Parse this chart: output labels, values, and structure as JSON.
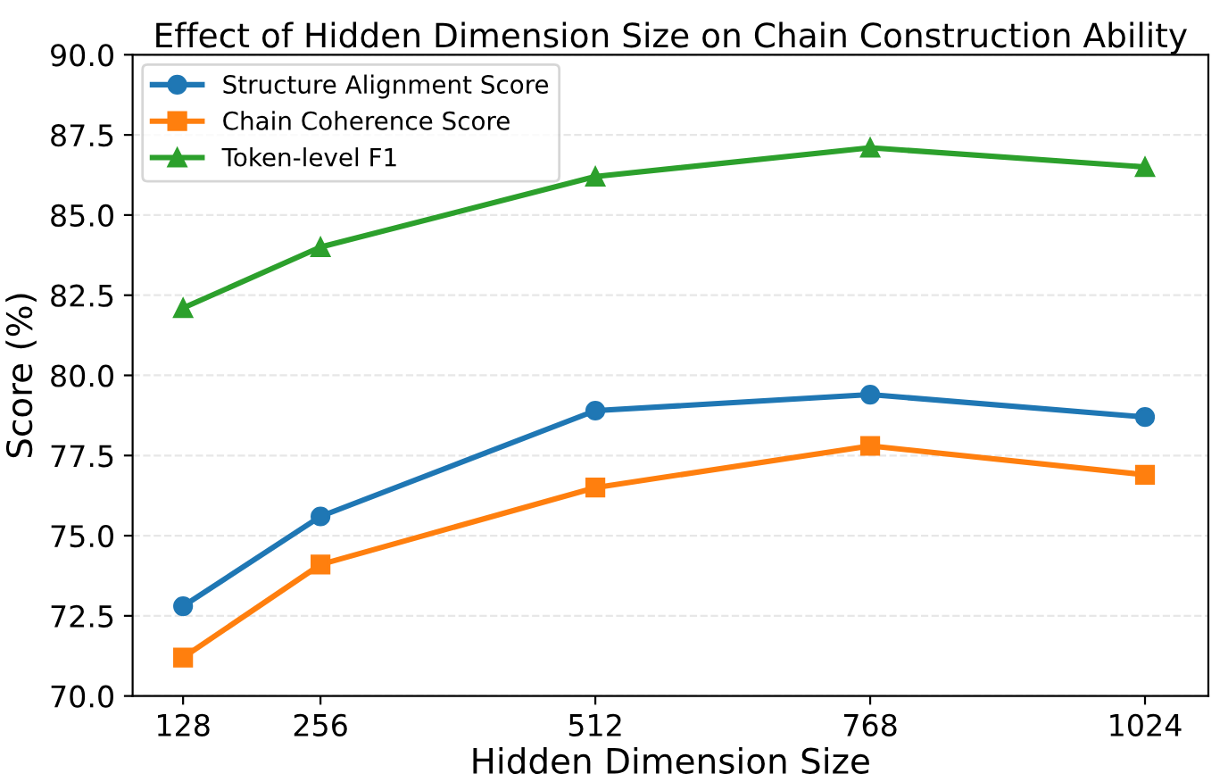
{
  "chart_data": {
    "type": "line",
    "title": "Effect of Hidden Dimension Size on Chain Construction Ability",
    "xlabel": "Hidden Dimension Size",
    "ylabel": "Score (%)",
    "x": [
      128,
      256,
      512,
      768,
      1024
    ],
    "series": [
      {
        "name": "Structure Alignment Score",
        "color": "#1f77b4",
        "marker": "circle",
        "values": [
          72.8,
          75.6,
          78.9,
          79.4,
          78.7
        ]
      },
      {
        "name": "Chain Coherence Score",
        "color": "#ff7f0e",
        "marker": "square",
        "values": [
          71.2,
          74.1,
          76.5,
          77.8,
          76.9
        ]
      },
      {
        "name": "Token-level F1",
        "color": "#2ca02c",
        "marker": "triangle",
        "values": [
          82.1,
          84.0,
          86.2,
          87.1,
          86.5
        ]
      }
    ],
    "xlim": [
      81,
      1083
    ],
    "xticks": [
      128,
      256,
      512,
      768,
      1024
    ],
    "ylim": [
      70,
      90
    ],
    "yticks": [
      {
        "value": 70,
        "label": "70.0"
      },
      72.5,
      {
        "value": 75,
        "label": "75.0"
      },
      {
        "value": 77.5,
        "label": "77.5"
      },
      {
        "value": 80,
        "label": "80.0"
      },
      82.5,
      {
        "value": 85,
        "label": "85.0"
      },
      87.5,
      {
        "value": 90,
        "label": "90.0"
      }
    ],
    "grid": "y",
    "legend": "top left",
    "line_style": "solid"
  }
}
